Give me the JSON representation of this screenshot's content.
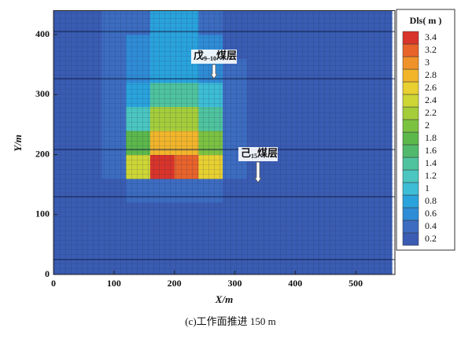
{
  "chart_data": {
    "type": "heatmap",
    "xlabel": "X/m",
    "ylabel": "Y/m",
    "caption": "(c)工作面推进 150 m",
    "xlim": [
      0,
      565
    ],
    "ylim": [
      0,
      440
    ],
    "xticks": [
      0,
      100,
      200,
      300,
      400,
      500
    ],
    "yticks": [
      0,
      100,
      200,
      300,
      400
    ],
    "x": [
      20,
      60,
      100,
      140,
      180,
      220,
      260,
      300,
      340,
      380,
      420,
      460,
      500,
      540
    ],
    "y": [
      20,
      60,
      100,
      140,
      180,
      220,
      260,
      300,
      340,
      380,
      420
    ],
    "z": [
      [
        0.3,
        0.3,
        0.3,
        0.3,
        0.3,
        0.3,
        0.3,
        0.3,
        0.3,
        0.3,
        0.3,
        0.3,
        0.3,
        0.3
      ],
      [
        0.3,
        0.3,
        0.3,
        0.3,
        0.3,
        0.3,
        0.3,
        0.3,
        0.3,
        0.3,
        0.3,
        0.3,
        0.3,
        0.3
      ],
      [
        0.3,
        0.3,
        0.3,
        0.3,
        0.3,
        0.3,
        0.3,
        0.3,
        0.3,
        0.3,
        0.3,
        0.3,
        0.3,
        0.3
      ],
      [
        0.3,
        0.3,
        0.3,
        0.4,
        0.4,
        0.4,
        0.4,
        0.3,
        0.3,
        0.3,
        0.3,
        0.3,
        0.3,
        0.3
      ],
      [
        0.3,
        0.3,
        0.4,
        2.4,
        3.4,
        3.2,
        2.6,
        0.5,
        0.3,
        0.3,
        0.3,
        0.3,
        0.3,
        0.3
      ],
      [
        0.3,
        0.3,
        0.5,
        1.8,
        2.8,
        2.8,
        2.0,
        0.5,
        0.3,
        0.3,
        0.3,
        0.3,
        0.3,
        0.3
      ],
      [
        0.3,
        0.3,
        0.5,
        1.2,
        2.2,
        2.2,
        1.4,
        0.5,
        0.3,
        0.3,
        0.3,
        0.3,
        0.3,
        0.3
      ],
      [
        0.3,
        0.3,
        0.4,
        0.9,
        1.4,
        1.4,
        1.0,
        0.4,
        0.3,
        0.3,
        0.3,
        0.3,
        0.3,
        0.3
      ],
      [
        0.3,
        0.3,
        0.4,
        0.7,
        0.9,
        0.9,
        0.7,
        0.4,
        0.3,
        0.3,
        0.3,
        0.3,
        0.3,
        0.3
      ],
      [
        0.3,
        0.3,
        0.4,
        0.6,
        0.8,
        0.8,
        0.6,
        0.3,
        0.3,
        0.3,
        0.3,
        0.3,
        0.3,
        0.3
      ],
      [
        0.3,
        0.3,
        0.4,
        0.5,
        0.8,
        0.8,
        0.5,
        0.3,
        0.3,
        0.3,
        0.3,
        0.3,
        0.3,
        0.3
      ]
    ],
    "colorbar": {
      "title": "Dls( m )",
      "levels": [
        0.2,
        0.4,
        0.6,
        0.8,
        1,
        1.2,
        1.4,
        1.6,
        1.8,
        2,
        2.2,
        2.4,
        2.6,
        2.8,
        3,
        3.2,
        3.4
      ],
      "colors": [
        "#3a5cb2",
        "#3d6cc0",
        "#2f8cd6",
        "#2aa3dc",
        "#3dbdd6",
        "#4bc6c0",
        "#4fc39d",
        "#52b96c",
        "#5cb84a",
        "#7cc241",
        "#a5cd3a",
        "#cdd635",
        "#e7d030",
        "#f2b52a",
        "#f0922a",
        "#e8632a",
        "#d9342a"
      ]
    },
    "annotations": [
      {
        "prefix": "戊",
        "subscript": "9–10",
        "suffix": "煤层"
      },
      {
        "prefix": "己",
        "subscript": "15",
        "suffix": "煤层"
      }
    ]
  }
}
